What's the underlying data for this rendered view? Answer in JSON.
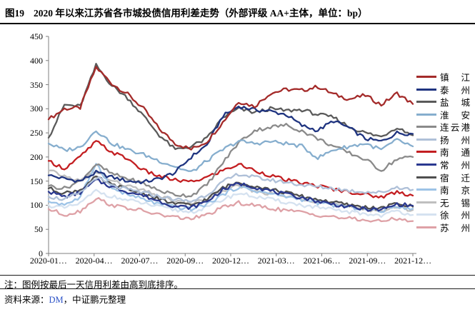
{
  "header": {
    "figure_label": "图19",
    "title": "2020 年以来江苏省各市城投债信用利差走势（外部评级 AA+主体，单位：bp）"
  },
  "notes": {
    "note": "注：图例按最后一天信用利差由高到底排序。",
    "source_prefix": "资料来源：",
    "source_link": "DM",
    "source_suffix": "，中证鹏元整理"
  },
  "chart_data": {
    "type": "line",
    "title": "2020 年以来江苏省各市城投债信用利差走势（外部评级 AA+主体，单位：bp）",
    "unit": "bp",
    "ylim": [
      0,
      450
    ],
    "y_tick_step": 50,
    "y_tick_labels": [
      "450",
      "400",
      "350",
      "300",
      "250",
      "200",
      "150",
      "100",
      "50",
      "0"
    ],
    "x_tick_labels": [
      "2020-01…",
      "2020-04…",
      "2020-07…",
      "2020-09…",
      "2020-12…",
      "2021-03…",
      "2021-06…",
      "2021-09…",
      "2021-12…"
    ],
    "x_months": [
      "2020-01",
      "2020-02",
      "2020-03",
      "2020-04",
      "2020-05",
      "2020-06",
      "2020-07",
      "2020-08",
      "2020-09",
      "2020-10",
      "2020-11",
      "2020-12",
      "2021-01",
      "2021-02",
      "2021-03",
      "2021-04",
      "2021-05",
      "2021-06",
      "2021-07",
      "2021-08",
      "2021-09",
      "2021-10",
      "2021-11",
      "2021-12"
    ],
    "grid": false,
    "legend_position": "right",
    "legend_sorted_by": "last-day spread, high to low",
    "series": [
      {
        "name": "镇江",
        "color": "#A42B2A",
        "values": [
          278,
          300,
          302,
          386,
          352,
          330,
          300,
          258,
          228,
          216,
          232,
          272,
          315,
          305,
          332,
          340,
          338,
          346,
          330,
          320,
          328,
          308,
          332,
          310
        ]
      },
      {
        "name": "泰州",
        "color": "#1F3480",
        "values": [
          162,
          155,
          150,
          168,
          158,
          150,
          148,
          155,
          168,
          200,
          225,
          285,
          305,
          298,
          295,
          288,
          265,
          255,
          275,
          260,
          238,
          232,
          250,
          248
        ]
      },
      {
        "name": "盐城",
        "color": "#5A5A5A",
        "values": [
          240,
          308,
          305,
          390,
          348,
          322,
          285,
          245,
          215,
          222,
          238,
          282,
          300,
          292,
          300,
          296,
          298,
          288,
          282,
          262,
          250,
          242,
          262,
          245
        ]
      },
      {
        "name": "淮安",
        "color": "#86AECE",
        "values": [
          228,
          214,
          220,
          256,
          228,
          215,
          205,
          192,
          180,
          168,
          192,
          215,
          233,
          228,
          232,
          228,
          222,
          198,
          215,
          222,
          228,
          215,
          235,
          222
        ]
      },
      {
        "name": "连云港",
        "color": "#8A8A8A",
        "values": [
          140,
          135,
          150,
          185,
          165,
          155,
          145,
          130,
          122,
          120,
          142,
          188,
          230,
          255,
          262,
          266,
          254,
          238,
          222,
          208,
          195,
          172,
          196,
          200
        ]
      },
      {
        "name": "扬州",
        "color": "#AFC0D8",
        "values": [
          118,
          112,
          125,
          158,
          140,
          132,
          126,
          118,
          112,
          108,
          122,
          148,
          165,
          158,
          152,
          148,
          142,
          138,
          135,
          130,
          128,
          126,
          138,
          132
        ]
      },
      {
        "name": "南通",
        "color": "#C31E21",
        "values": [
          192,
          176,
          200,
          232,
          210,
          196,
          172,
          160,
          152,
          148,
          158,
          172,
          185,
          172,
          162,
          152,
          146,
          140,
          133,
          128,
          122,
          117,
          128,
          120
        ]
      },
      {
        "name": "常州",
        "color": "#2A3890",
        "values": [
          128,
          118,
          126,
          152,
          138,
          128,
          120,
          108,
          98,
          95,
          108,
          132,
          145,
          138,
          130,
          122,
          116,
          108,
          102,
          96,
          92,
          90,
          102,
          99
        ]
      },
      {
        "name": "宿迁",
        "color": "#4F4F4F",
        "values": [
          135,
          125,
          132,
          158,
          142,
          133,
          124,
          112,
          103,
          100,
          112,
          136,
          148,
          140,
          133,
          126,
          118,
          112,
          106,
          100,
          96,
          93,
          104,
          97
        ]
      },
      {
        "name": "南京",
        "color": "#9DC3E6",
        "values": [
          108,
          102,
          115,
          188,
          135,
          122,
          112,
          102,
          96,
          92,
          102,
          122,
          138,
          130,
          124,
          118,
          112,
          105,
          100,
          96,
          92,
          88,
          98,
          93
        ]
      },
      {
        "name": "无锡",
        "color": "#BFBFBF",
        "values": [
          172,
          160,
          150,
          170,
          150,
          140,
          130,
          118,
          108,
          104,
          112,
          130,
          140,
          130,
          124,
          118,
          114,
          108,
          102,
          96,
          92,
          88,
          96,
          90
        ]
      },
      {
        "name": "徐州",
        "color": "#D5E2F0",
        "values": [
          100,
          94,
          104,
          130,
          118,
          110,
          104,
          96,
          90,
          86,
          95,
          112,
          125,
          118,
          112,
          106,
          100,
          95,
          90,
          86,
          82,
          79,
          88,
          80
        ]
      },
      {
        "name": "苏州",
        "color": "#DEA1A6",
        "values": [
          92,
          80,
          88,
          115,
          100,
          94,
          88,
          80,
          75,
          72,
          80,
          95,
          105,
          99,
          94,
          89,
          85,
          80,
          76,
          72,
          69,
          66,
          73,
          67
        ]
      }
    ]
  }
}
